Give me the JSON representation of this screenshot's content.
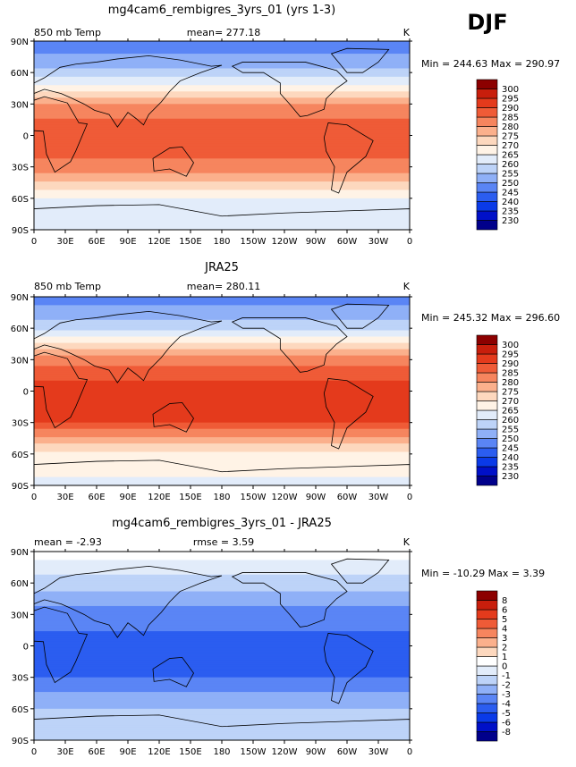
{
  "page": {
    "season": "DJF"
  },
  "colors": {
    "temp_scale": [
      "#00008b",
      "#0010c8",
      "#0a3ae8",
      "#2b5df0",
      "#5a85f5",
      "#8fb0f7",
      "#bdd3f8",
      "#e2ecfa",
      "#fff3e6",
      "#fdd8be",
      "#fbb08c",
      "#f6855e",
      "#ef5b37",
      "#e43a1c",
      "#c81e0c",
      "#8c0000"
    ],
    "diff_scale": [
      "#00008b",
      "#0010c8",
      "#0a3ae8",
      "#2b5df0",
      "#5a85f5",
      "#8fb0f7",
      "#bdd3f8",
      "#e2ecfa",
      "#ffffff",
      "#fdd8be",
      "#fbb08c",
      "#f6855e",
      "#ef5b37",
      "#e43a1c",
      "#c81e0c",
      "#8c0000"
    ],
    "land": "#ffffff",
    "coast": "#000000"
  },
  "chart_data": [
    {
      "type": "heatmap",
      "title": "mg4cam6_rembigres_3yrs_01 (yrs 1-3)",
      "left_label": "850 mb Temp",
      "center_label": "mean= 277.18",
      "unit": "K",
      "minmax": "Min = 244.63 Max = 290.97",
      "xticks": [
        "0",
        "30E",
        "60E",
        "90E",
        "120E",
        "150E",
        "180",
        "150W",
        "120W",
        "90W",
        "60W",
        "30W",
        "0"
      ],
      "yticks": [
        "90N",
        "60N",
        "30N",
        "0",
        "30S",
        "60S",
        "90S"
      ],
      "levels": [
        "230",
        "235",
        "240",
        "245",
        "250",
        "255",
        "260",
        "265",
        "270",
        "275",
        "280",
        "285",
        "290",
        "295",
        "300"
      ],
      "field": {
        "lat": [
          90,
          60,
          30,
          0,
          -30,
          -60,
          -90
        ],
        "value_K": [
          246,
          256,
          280,
          290,
          283,
          265,
          262
        ]
      }
    },
    {
      "type": "heatmap",
      "title": "JRA25",
      "left_label": "850 mb Temp",
      "center_label": "mean= 280.11",
      "unit": "K",
      "minmax": "Min = 245.32 Max = 296.60",
      "xticks": [
        "0",
        "30E",
        "60E",
        "90E",
        "120E",
        "150E",
        "180",
        "150W",
        "120W",
        "90W",
        "60W",
        "30W",
        "0"
      ],
      "yticks": [
        "90N",
        "60N",
        "30N",
        "0",
        "30S",
        "60S",
        "90S"
      ],
      "levels": [
        "230",
        "235",
        "240",
        "245",
        "250",
        "255",
        "260",
        "265",
        "270",
        "275",
        "280",
        "285",
        "290",
        "295",
        "300"
      ],
      "field": {
        "lat": [
          90,
          60,
          30,
          0,
          -30,
          -60,
          -90
        ],
        "value_K": [
          247,
          258,
          283,
          293,
          290,
          268,
          264
        ]
      }
    },
    {
      "type": "heatmap",
      "title": "mg4cam6_rembigres_3yrs_01 - JRA25",
      "left_label": "mean =  -2.93",
      "center_label": "rmse =    3.59",
      "unit": "K",
      "minmax": "Min = -10.29 Max =    3.39",
      "xticks": [
        "0",
        "30E",
        "60E",
        "90E",
        "120E",
        "150E",
        "180",
        "150W",
        "120W",
        "90W",
        "60W",
        "30W",
        "0"
      ],
      "yticks": [
        "90N",
        "60N",
        "30N",
        "0",
        "30S",
        "60S",
        "90S"
      ],
      "levels": [
        "-8",
        "-6",
        "-5",
        "-4",
        "-3",
        "-2",
        "-1",
        "0",
        "1",
        "2",
        "3",
        "4",
        "5",
        "6",
        "8"
      ],
      "field": {
        "lat": [
          90,
          60,
          30,
          0,
          -30,
          -60,
          -90
        ],
        "value_K": [
          0.5,
          -1.5,
          -3.5,
          -4.5,
          -4,
          -2,
          -1
        ]
      }
    }
  ]
}
